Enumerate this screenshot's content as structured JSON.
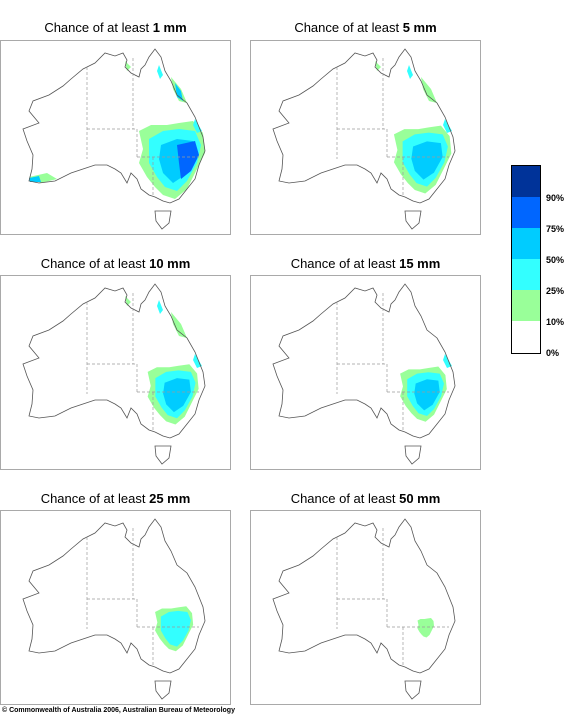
{
  "panels": [
    {
      "prefix": "Chance of at least ",
      "amount": "1 mm",
      "extent": 1.0
    },
    {
      "prefix": "Chance of at least ",
      "amount": "5 mm",
      "extent": 0.8
    },
    {
      "prefix": "Chance of at least ",
      "amount": "10 mm",
      "extent": 0.65
    },
    {
      "prefix": "Chance of at least ",
      "amount": "15 mm",
      "extent": 0.55
    },
    {
      "prefix": "Chance of at least ",
      "amount": "25 mm",
      "extent": 0.35
    },
    {
      "prefix": "Chance of at least ",
      "amount": "50 mm",
      "extent": 0.08
    }
  ],
  "legend": {
    "swatches": [
      {
        "color": "#003399",
        "range": "90–100%"
      },
      {
        "color": "#0066ff",
        "range": "75–90%"
      },
      {
        "color": "#00ccff",
        "range": "50–75%"
      },
      {
        "color": "#33ffff",
        "range": "25–50%"
      },
      {
        "color": "#99ff99",
        "range": "10–25%"
      },
      {
        "color": "#ffffff",
        "range": "0–10%"
      }
    ],
    "labels": [
      "90%",
      "75%",
      "50%",
      "25%",
      "10%",
      "0%"
    ]
  },
  "colors": {
    "outline": "#555555",
    "border": "#9a9a9a"
  },
  "copyright": "© Commonwealth of Australia 2006, Australian Bureau of Meteorology"
}
